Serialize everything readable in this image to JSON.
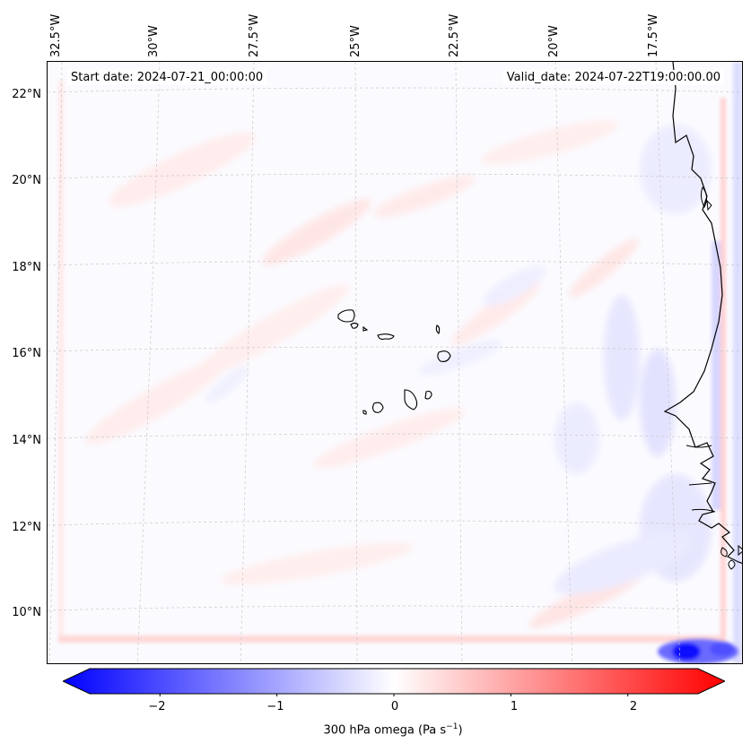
{
  "map": {
    "lon_labels": [
      "32.5°W",
      "30°W",
      "27.5°W",
      "25°W",
      "22.5°W",
      "20°W",
      "17.5°W"
    ],
    "lat_labels": [
      "22°N",
      "20°N",
      "18°N",
      "16°N",
      "14°N",
      "12°N",
      "10°N"
    ],
    "start_date": "Start date: 2024-07-21_00:00:00",
    "valid_date": "Valid_date: 2024-07-22T19:00:00.00"
  },
  "colorbar": {
    "label": "300 hPa omega (Pa s",
    "label_sup": "−1",
    "label_end": ")",
    "ticks": [
      "−2",
      "−1",
      "0",
      "1",
      "2"
    ],
    "min": -2.6,
    "max": 2.6,
    "min_color": "#0000ff",
    "mid_color": "#ffffff",
    "max_color": "#ff0000"
  }
}
